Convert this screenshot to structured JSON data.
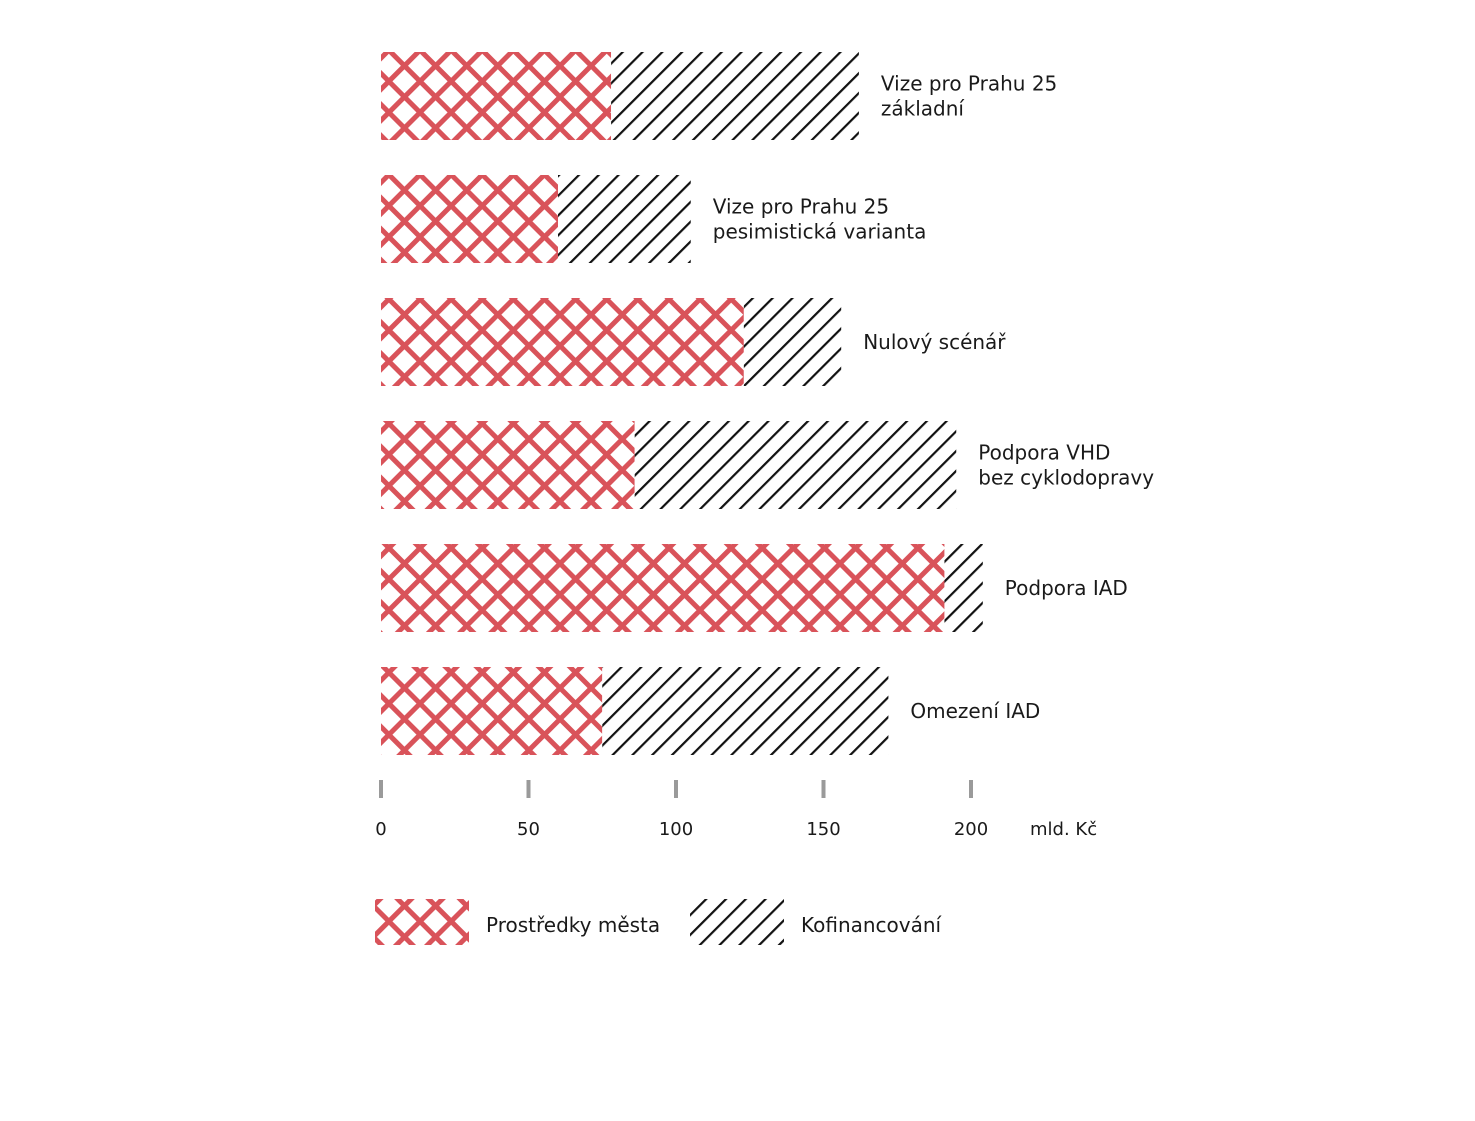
{
  "chart_data": {
    "type": "bar",
    "orientation": "horizontal",
    "stacked": true,
    "categories": [
      [
        "Vize pro Prahu 25",
        "základní"
      ],
      [
        "Vize pro Prahu 25",
        "pesimistická varianta"
      ],
      [
        "Nulový scénář"
      ],
      [
        "Podpora VHD",
        "bez cyklodopravy"
      ],
      [
        "Podpora IAD"
      ],
      [
        "Omezení IAD"
      ]
    ],
    "series": [
      {
        "name": "Prostředky města",
        "pattern": "crosshatch",
        "color": "#d9535a",
        "values": [
          78,
          60,
          123,
          86,
          191,
          75
        ]
      },
      {
        "name": "Kofinancování",
        "pattern": "diagonal",
        "color": "#111111",
        "values": [
          84,
          45,
          33,
          109,
          13,
          97
        ]
      }
    ],
    "xlim": [
      0,
      200
    ],
    "xticks": [
      "0",
      "50",
      "100",
      "150",
      "200"
    ],
    "xunit": "mld. Kč",
    "grid": false,
    "legend_position": "bottom"
  }
}
